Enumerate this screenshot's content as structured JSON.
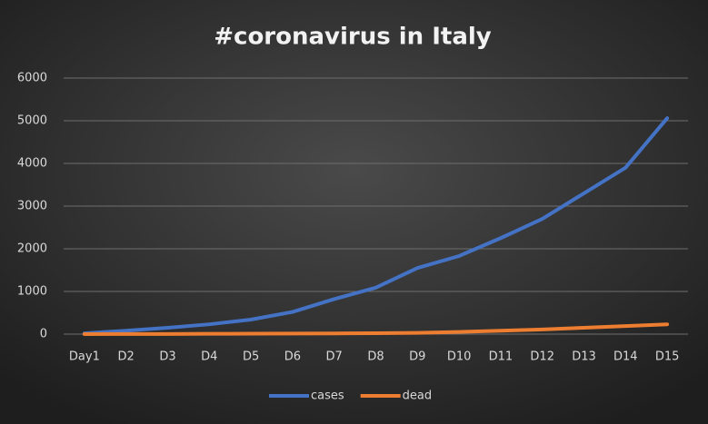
{
  "chart_data": {
    "type": "line",
    "title": "#coronavirus  in  Italy",
    "categories": [
      "Day1",
      "D2",
      "D3",
      "D4",
      "D5",
      "D6",
      "D7",
      "D8",
      "D9",
      "D10",
      "D11",
      "D12",
      "D13",
      "D14",
      "D15"
    ],
    "series": [
      {
        "name": "cases",
        "color": "#4472c4",
        "values": [
          20,
          80,
          150,
          230,
          340,
          520,
          820,
          1090,
          1550,
          1830,
          2250,
          2700,
          3300,
          3900,
          5060
        ]
      },
      {
        "name": "dead",
        "color": "#ed7d31",
        "values": [
          0,
          2,
          3,
          7,
          10,
          12,
          17,
          21,
          29,
          50,
          80,
          110,
          150,
          190,
          230
        ]
      }
    ],
    "ylim": [
      0,
      6000
    ],
    "yticks": [
      0,
      1000,
      2000,
      3000,
      4000,
      5000,
      6000
    ],
    "grid": true,
    "legend": "bottom"
  }
}
